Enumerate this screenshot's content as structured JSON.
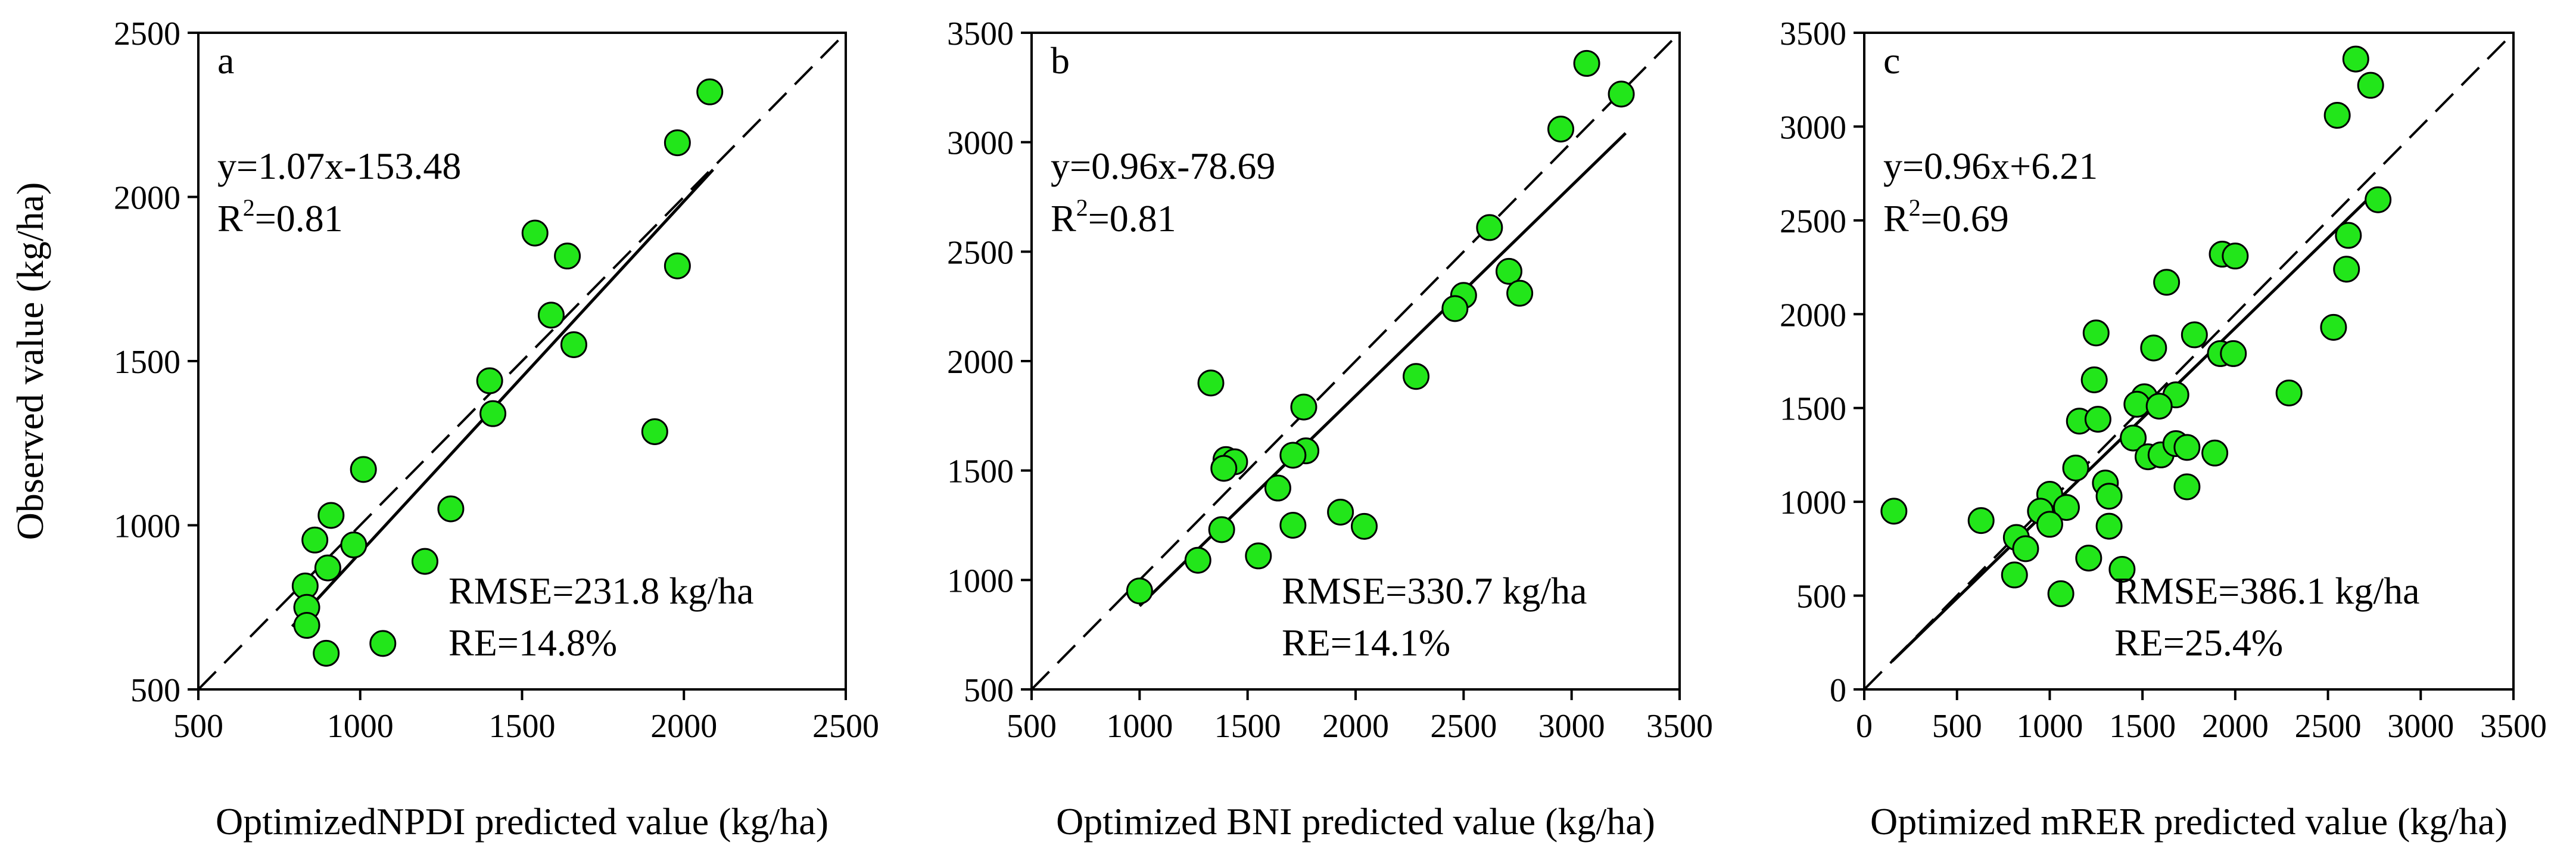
{
  "chart_data": [
    {
      "type": "scatter",
      "panel": "a",
      "xlabel": "OptimizedNPDI predicted value (kg/ha)",
      "ylabel": "Observed value (kg/ha)",
      "xlim": [
        500,
        2500
      ],
      "ylim": [
        500,
        2500
      ],
      "xticks": [
        500,
        1000,
        1500,
        2000,
        2500
      ],
      "yticks": [
        500,
        1000,
        1500,
        2000,
        2500
      ],
      "fit": {
        "slope": 1.07,
        "intercept": -153.48,
        "x_range": [
          790,
          2090
        ]
      },
      "equation": "y=1.07x-153.48",
      "r2_label": "R",
      "r2_sup": "2",
      "r2_value": "=0.81",
      "rmse": "RMSE=231.8 kg/ha",
      "re": "RE=14.8%",
      "marker_color": "#22e61a",
      "points": [
        [
          2080,
          2320
        ],
        [
          1980,
          2165
        ],
        [
          1540,
          1890
        ],
        [
          1640,
          1820
        ],
        [
          1980,
          1790
        ],
        [
          1590,
          1640
        ],
        [
          1660,
          1550
        ],
        [
          1400,
          1440
        ],
        [
          1410,
          1340
        ],
        [
          1910,
          1285
        ],
        [
          1010,
          1170
        ],
        [
          1280,
          1050
        ],
        [
          910,
          1030
        ],
        [
          860,
          955
        ],
        [
          980,
          940
        ],
        [
          900,
          870
        ],
        [
          1200,
          890
        ],
        [
          830,
          815
        ],
        [
          835,
          750
        ],
        [
          835,
          695
        ],
        [
          1070,
          640
        ],
        [
          895,
          610
        ]
      ]
    },
    {
      "type": "scatter",
      "panel": "b",
      "xlabel": "Optimized BNI predicted value (kg/ha)",
      "ylabel": "",
      "xlim": [
        500,
        3500
      ],
      "ylim": [
        500,
        3500
      ],
      "xticks": [
        500,
        1000,
        1500,
        2000,
        2500,
        3000,
        3500
      ],
      "yticks": [
        500,
        1000,
        1500,
        2000,
        2500,
        3000,
        3500
      ],
      "fit": {
        "slope": 0.96,
        "intercept": -78.69,
        "x_range": [
          1000,
          3250
        ]
      },
      "equation": "y=0.96x-78.69",
      "r2_label": "R",
      "r2_sup": "2",
      "r2_value": "=0.81",
      "rmse": "RMSE=330.7 kg/ha",
      "re": "RE=14.1%",
      "marker_color": "#22e61a",
      "points": [
        [
          3070,
          3360
        ],
        [
          3230,
          3220
        ],
        [
          2950,
          3060
        ],
        [
          2620,
          2610
        ],
        [
          2710,
          2410
        ],
        [
          2760,
          2310
        ],
        [
          2500,
          2300
        ],
        [
          2460,
          2240
        ],
        [
          2280,
          1930
        ],
        [
          1330,
          1900
        ],
        [
          1760,
          1790
        ],
        [
          1770,
          1590
        ],
        [
          1710,
          1570
        ],
        [
          1400,
          1550
        ],
        [
          1440,
          1540
        ],
        [
          1390,
          1510
        ],
        [
          1640,
          1420
        ],
        [
          1930,
          1310
        ],
        [
          1710,
          1250
        ],
        [
          2040,
          1245
        ],
        [
          1380,
          1230
        ],
        [
          1550,
          1110
        ],
        [
          1270,
          1090
        ],
        [
          1000,
          950
        ]
      ]
    },
    {
      "type": "scatter",
      "panel": "c",
      "xlabel": "Optimized mRER predicted value (kg/ha)",
      "ylabel": "",
      "xlim": [
        0,
        3500
      ],
      "ylim": [
        0,
        3500
      ],
      "xticks": [
        0,
        500,
        1000,
        1500,
        2000,
        2500,
        3000,
        3500
      ],
      "yticks": [
        0,
        500,
        1000,
        1500,
        2000,
        2500,
        3000,
        3500
      ],
      "fit": {
        "slope": 0.96,
        "intercept": 6.21,
        "x_range": [
          150,
          2780
        ]
      },
      "equation": "y=0.96x+6.21",
      "r2_label": "R",
      "r2_sup": "2",
      "r2_value": "=0.69",
      "rmse": "RMSE=386.1 kg/ha",
      "re": "RE=25.4%",
      "marker_color": "#22e61a",
      "points": [
        [
          2650,
          3360
        ],
        [
          2730,
          3220
        ],
        [
          2550,
          3060
        ],
        [
          2770,
          2610
        ],
        [
          2610,
          2420
        ],
        [
          2600,
          2240
        ],
        [
          1930,
          2320
        ],
        [
          2000,
          2310
        ],
        [
          1630,
          2170
        ],
        [
          2530,
          1930
        ],
        [
          1250,
          1900
        ],
        [
          1780,
          1890
        ],
        [
          1560,
          1820
        ],
        [
          1920,
          1790
        ],
        [
          1990,
          1790
        ],
        [
          1240,
          1650
        ],
        [
          2290,
          1580
        ],
        [
          1510,
          1560
        ],
        [
          1680,
          1570
        ],
        [
          1470,
          1520
        ],
        [
          1590,
          1510
        ],
        [
          1160,
          1430
        ],
        [
          1260,
          1440
        ],
        [
          1450,
          1340
        ],
        [
          1530,
          1240
        ],
        [
          1600,
          1250
        ],
        [
          1680,
          1310
        ],
        [
          1740,
          1290
        ],
        [
          1890,
          1260
        ],
        [
          1140,
          1180
        ],
        [
          1300,
          1100
        ],
        [
          1740,
          1080
        ],
        [
          1000,
          1040
        ],
        [
          1320,
          1030
        ],
        [
          1090,
          970
        ],
        [
          950,
          950
        ],
        [
          160,
          950
        ],
        [
          630,
          900
        ],
        [
          1000,
          880
        ],
        [
          1320,
          870
        ],
        [
          820,
          810
        ],
        [
          870,
          750
        ],
        [
          1210,
          700
        ],
        [
          1390,
          640
        ],
        [
          810,
          610
        ],
        [
          1060,
          510
        ]
      ]
    }
  ]
}
